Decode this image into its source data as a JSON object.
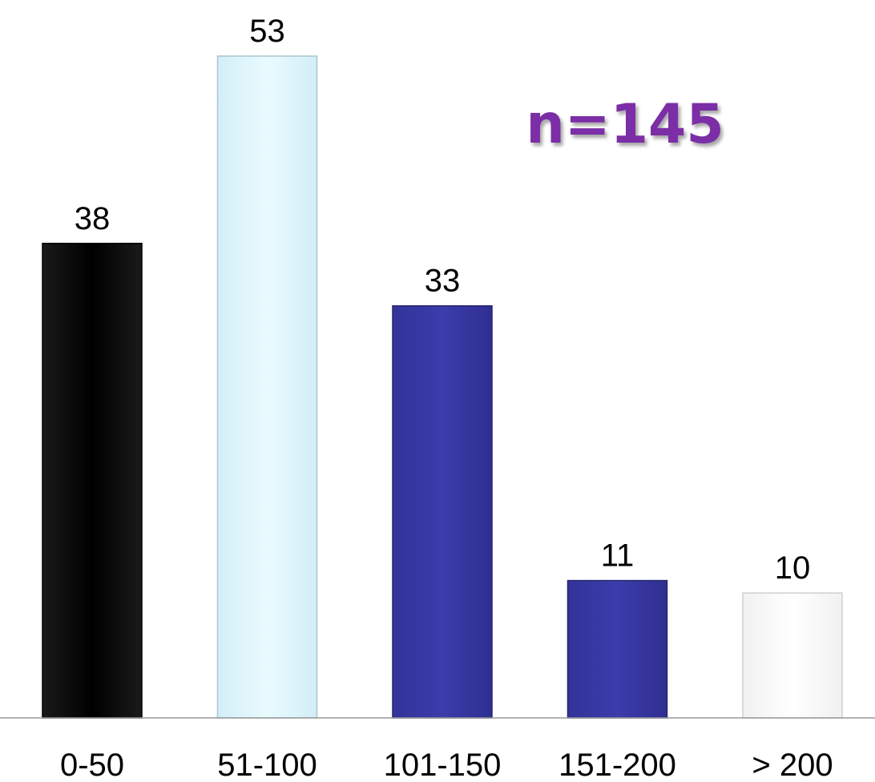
{
  "chart_data": {
    "type": "bar",
    "categories": [
      "0-50",
      "51-100",
      "101-150",
      "151-200",
      "> 200"
    ],
    "values": [
      38,
      53,
      33,
      11,
      10
    ],
    "data_labels": [
      "38",
      "53",
      "33",
      "11",
      "10"
    ],
    "bar_colors": [
      "#000000",
      "#e6faff",
      "#3a3aa5",
      "#3a3aa5",
      "#ffffff"
    ],
    "annotation": {
      "text": "n=145",
      "color": "#7b2fa6"
    },
    "title": "",
    "xlabel": "",
    "ylabel": "",
    "ylim": [
      0,
      53
    ],
    "grid": false,
    "legend": "none"
  }
}
